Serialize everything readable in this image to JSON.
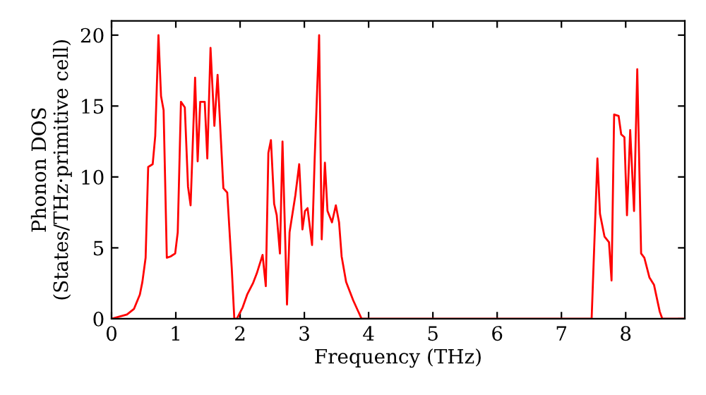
{
  "chart_data": {
    "type": "line",
    "xlabel": "Frequency (THz)",
    "ylabel": "Phonon DOS\n(States/THz·primitive cell)",
    "xlim": [
      0,
      8.92
    ],
    "ylim": [
      0,
      21
    ],
    "xticks": [
      0,
      1,
      2,
      3,
      4,
      5,
      6,
      7,
      8
    ],
    "yticks": [
      0,
      5,
      10,
      15,
      20
    ],
    "grid": false,
    "marker": "none",
    "line_style": "solid",
    "series": [
      {
        "color": "#ff0000",
        "x": [
          0,
          0.24,
          0.35,
          0.44,
          0.48,
          0.53,
          0.57,
          0.64,
          0.68,
          0.73,
          0.77,
          0.81,
          0.86,
          0.92,
          0.99,
          1.03,
          1.08,
          1.14,
          1.19,
          1.23,
          1.3,
          1.34,
          1.38,
          1.45,
          1.49,
          1.54,
          1.6,
          1.65,
          1.74,
          1.8,
          1.87,
          1.91,
          1.95,
          2.04,
          2.11,
          2.2,
          2.26,
          2.35,
          2.4,
          2.44,
          2.48,
          2.53,
          2.57,
          2.62,
          2.66,
          2.73,
          2.77,
          2.86,
          2.92,
          2.97,
          3.01,
          3.05,
          3.12,
          3.16,
          3.23,
          3.27,
          3.32,
          3.36,
          3.43,
          3.49,
          3.54,
          3.58,
          3.65,
          3.76,
          3.89,
          7.47,
          7.56,
          7.6,
          7.67,
          7.74,
          7.78,
          7.82,
          7.89,
          7.93,
          7.98,
          8.02,
          8.07,
          8.13,
          8.18,
          8.24,
          8.29,
          8.37,
          8.44,
          8.53,
          8.57,
          8.92
        ],
        "values": [
          0,
          0.3,
          0.7,
          1.7,
          2.6,
          4.3,
          10.7,
          10.9,
          12.9,
          20,
          15.7,
          14.7,
          4.3,
          4.4,
          4.6,
          6.1,
          15.3,
          14.9,
          9.3,
          8.0,
          17.0,
          11.1,
          15.3,
          15.3,
          11.3,
          19.1,
          13.6,
          17.2,
          9.2,
          8.9,
          3.6,
          0,
          0,
          0.8,
          1.7,
          2.5,
          3.2,
          4.5,
          2.3,
          11.7,
          12.6,
          8.1,
          7.3,
          4.6,
          12.5,
          1.0,
          6.1,
          8.7,
          10.9,
          6.3,
          7.6,
          7.8,
          5.2,
          11.2,
          20,
          5.6,
          11.0,
          7.6,
          6.8,
          8.0,
          6.8,
          4.4,
          2.6,
          1.3,
          0,
          0,
          11.3,
          7.4,
          5.8,
          5.4,
          2.7,
          14.4,
          14.3,
          13.0,
          12.8,
          7.3,
          13.3,
          7.6,
          17.6,
          4.6,
          4.3,
          2.9,
          2.4,
          0.5,
          0,
          0
        ]
      }
    ]
  }
}
